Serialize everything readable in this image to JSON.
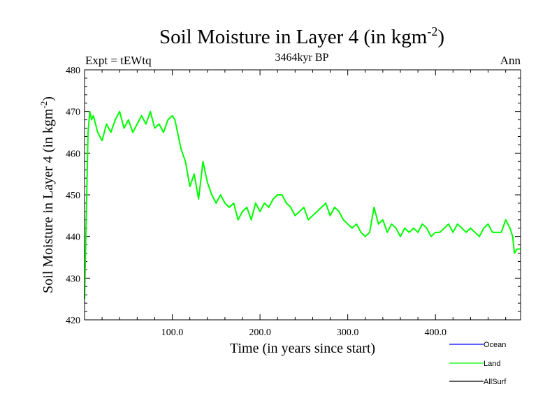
{
  "chart_data": {
    "type": "line",
    "title": "Soil Moisture in Layer 4 (in kgm",
    "title_sup": "-2",
    "title_end": ")",
    "subtitle": "3464kyr BP",
    "left_label": "Expt = tEWtq",
    "right_label": "Ann",
    "xlabel": "Time (in years since start)",
    "ylabel": "Soil Moisture in Layer 4 (in kgm",
    "ylabel_sup": "-2",
    "ylabel_end": ")",
    "xlim": [
      0,
      497
    ],
    "ylim": [
      420,
      480
    ],
    "x_ticks": [
      100,
      200,
      300,
      400
    ],
    "x_tick_labels": [
      "100.0",
      "200.0",
      "300.0",
      "400.0"
    ],
    "y_ticks": [
      420,
      430,
      440,
      450,
      460,
      470,
      480
    ],
    "y_tick_labels": [
      "420",
      "430",
      "440",
      "450",
      "460",
      "470",
      "480"
    ],
    "legend": [
      {
        "name": "Ocean",
        "color": "#0000ff"
      },
      {
        "name": "Land",
        "color": "#00ff00"
      },
      {
        "name": "AllSurf",
        "color": "#000000"
      }
    ],
    "series": [
      {
        "name": "Land",
        "color": "#00ff00",
        "x": [
          0,
          2,
          4,
          6,
          8,
          10,
          15,
          20,
          25,
          30,
          35,
          40,
          45,
          50,
          55,
          60,
          65,
          70,
          75,
          80,
          85,
          90,
          95,
          100,
          103,
          106,
          110,
          115,
          120,
          125,
          130,
          135,
          140,
          145,
          150,
          155,
          160,
          165,
          170,
          175,
          180,
          185,
          190,
          195,
          200,
          205,
          210,
          215,
          220,
          225,
          230,
          235,
          240,
          245,
          250,
          255,
          260,
          265,
          270,
          275,
          280,
          285,
          290,
          295,
          300,
          305,
          310,
          315,
          320,
          325,
          330,
          335,
          340,
          345,
          350,
          355,
          360,
          365,
          370,
          375,
          380,
          385,
          390,
          395,
          400,
          405,
          410,
          415,
          420,
          425,
          430,
          435,
          440,
          445,
          450,
          455,
          460,
          465,
          470,
          475,
          480,
          485,
          488,
          490,
          493,
          497
        ],
        "values": [
          425,
          445,
          465,
          470,
          468,
          469,
          465,
          463,
          467,
          465,
          468,
          470,
          466,
          468,
          465,
          467,
          469,
          467,
          470,
          466,
          467,
          465,
          468,
          469,
          468,
          465,
          461,
          458,
          452,
          455,
          449,
          458,
          453,
          450,
          448,
          450,
          448,
          447,
          448,
          444,
          446,
          447,
          444,
          448,
          446,
          448,
          447,
          449,
          450,
          450,
          448,
          447,
          445,
          446,
          447,
          444,
          445,
          446,
          447,
          448,
          445,
          447,
          446,
          444,
          443,
          442,
          443,
          441,
          440,
          441,
          447,
          443,
          444,
          441,
          443,
          442,
          440,
          442,
          441,
          442,
          441,
          443,
          442,
          440,
          441,
          441,
          442,
          443,
          441,
          443,
          442,
          441,
          442,
          441,
          440,
          442,
          443,
          441,
          441,
          441,
          444,
          442,
          440,
          436,
          437,
          437
        ]
      }
    ]
  }
}
